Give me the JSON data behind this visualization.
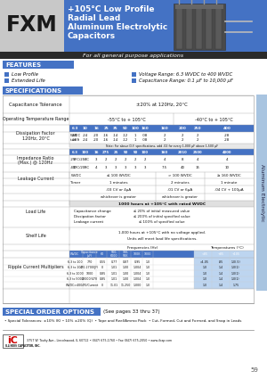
{
  "title_fxm": "FXM",
  "title_line1": "+105°C Low Profile",
  "title_line2": "Radial Lead",
  "title_line3": "Aluminum Electrolytic",
  "title_line4": "Capacitors",
  "subtitle": "For all general purpose applications",
  "features_title": "FEATURES",
  "feat1": "Low Profile",
  "feat2": "Extended Life",
  "spec1": "Voltage Range: 6.3 WVDC to 400 WVDC",
  "spec2": "Capacitance Range: 0.1 μF to 10,000 μF",
  "specs_title": "SPECIFICATIONS",
  "cap_tol_label": "Capacitance Tolerance",
  "cap_tol_value": "±20% at 120Hz, 20°C",
  "op_temp_label": "Operating Temperature Range",
  "op_temp_val1": "-55°C to + 105°C",
  "op_temp_val2": "-40°C to + 105°C",
  "df_label": "Dissipation Factor\n120Hz, 20°C",
  "wvdc_vals": [
    "6.3",
    "10",
    "16",
    "25",
    "35",
    "50",
    "100",
    "160",
    "160",
    "200",
    "250",
    "400"
  ],
  "tan_label": "tan δ",
  "tan_vals": [
    ".28",
    ".24",
    ".20",
    ".16",
    ".14",
    ".12",
    "1",
    ".08",
    "2",
    "2",
    "2",
    ".28"
  ],
  "note_text": "Note: For above D.F. specifications, add .02 for every 1,000 μF above 1,500 μF",
  "imp_label": "Impedance Ratio\n(Max.) @ 120Hz",
  "imp_wvdc_vals": [
    "6.3",
    "100",
    "16",
    "275",
    "25",
    "50",
    "50",
    "100",
    "160",
    "2010",
    "2500",
    "4000"
  ],
  "imp_row1_label": "-25°C/20°C",
  "imp_row1_vals": [
    "8",
    "4",
    "3",
    "2",
    "2",
    "2",
    "2",
    "2",
    "4",
    "8",
    "4",
    "4"
  ],
  "imp_row2_label": "-40°C/20°C",
  "imp_row2_vals": [
    "10",
    "6",
    "4",
    "3",
    "3",
    "3",
    "3",
    "3",
    "7.5",
    "40",
    "15",
    "10"
  ],
  "lc_label": "Leakage Current",
  "lc_wvdc1": "≤ 100 WVDC",
  "lc_wvdc2": "> 100 WVDC",
  "lc_wvdc3": "≥ 160 WVDC",
  "lc_timer1": "1 minutes",
  "lc_timer2": "2 minutes",
  "lc_timer3": "1 minute",
  "lc_formula1": ".03 CV or 4μA",
  "lc_formula2": ".01 CV or 6μA",
  "lc_formula3": ".04 CV + 100μA",
  "lc_greater": "whichever is greater",
  "ll_label": "Load Life",
  "ll_header": "1000 hours at +105°C with rated WVDC",
  "ll_cap": "Capacitance change",
  "ll_df": "Dissipation factor",
  "ll_lc": "Leakage current",
  "ll_cap_val": "≤ 20% of initial measured value",
  "ll_df_val": "≤ 200% of initial specified value",
  "ll_lc_val": "≤ 100% of specified value",
  "sl_label": "Shelf Life",
  "sl_text1": "1,000 hours at +105°C with no voltage applied.",
  "sl_text2": "Units will meet load life specifications.",
  "rc_label": "Ripple Current Multipliers",
  "rc_freq_header": "Frequencies (Hz)",
  "rc_temp_header": "Temperatures (°C)",
  "rc_col_headers": [
    "WVDC",
    "Capacitance\n(μF)",
    "60",
    "500-\n6000",
    "10K-\n50K",
    "100K",
    "1000",
    "<85",
    "+85",
    "+105"
  ],
  "rc_rows": [
    [
      "6.3 to 100",
      "770",
      "0.55",
      "0.77",
      "0.87",
      "0.95",
      "1.0",
      ">1.05",
      ".85",
      "1.0(.5)"
    ],
    [
      "6.3 to 100",
      "470-2700(JF)",
      "0",
      "1.01",
      "1.00",
      "1.004",
      "1.0",
      "1.0",
      "1.4",
      "1.0(1)"
    ],
    [
      "6.3 to 1000",
      "1000",
      "0.85",
      "1.01",
      "1.00",
      "1.004",
      "1.0",
      "1.0",
      "1.4",
      "1.0(1)"
    ],
    [
      "6.3 to 5000",
      "22000/478",
      "0.85",
      "1.01",
      "1.00",
      "1.004",
      "1.0",
      "1.0",
      "1.4",
      "1.0(1)"
    ],
    [
      "WVDC>400",
      "470/Current",
      "0",
      "11.01",
      "11.250",
      "1.000",
      "1.0",
      "1.0",
      "1.4",
      "1.75"
    ]
  ],
  "special_order_title": "SPECIAL ORDER OPTIONS",
  "special_order_ref": "(See pages 33 thru 37)",
  "special_order_text": "• Special Tolerances: ±10% (K) • 10% ±20% (Q)  • Tape and Reel/Ammo Pack  • Cut, Formed, Cut and Formed, and Snap in Leads",
  "footer_address": "3757 W. Touhy Ave., Lincolnwood, IL 60712 • (847) 675-1760 • Fax (847) 675-2050 • www.ilcap.com",
  "footer_company": "ILLINOIS CAPACITOR, INC.",
  "page_number": "59",
  "tab_text": "Aluminum Electrolytic",
  "blue": "#4472c4",
  "dark_blue": "#1f3864",
  "mid_blue": "#5b9bd5",
  "light_blue": "#bdd5f0",
  "gray_bg": "#c8c8c8",
  "dark_bar": "#2a2a2a",
  "white": "#ffffff",
  "black": "#111111",
  "tab_blue": "#a8c4e0"
}
